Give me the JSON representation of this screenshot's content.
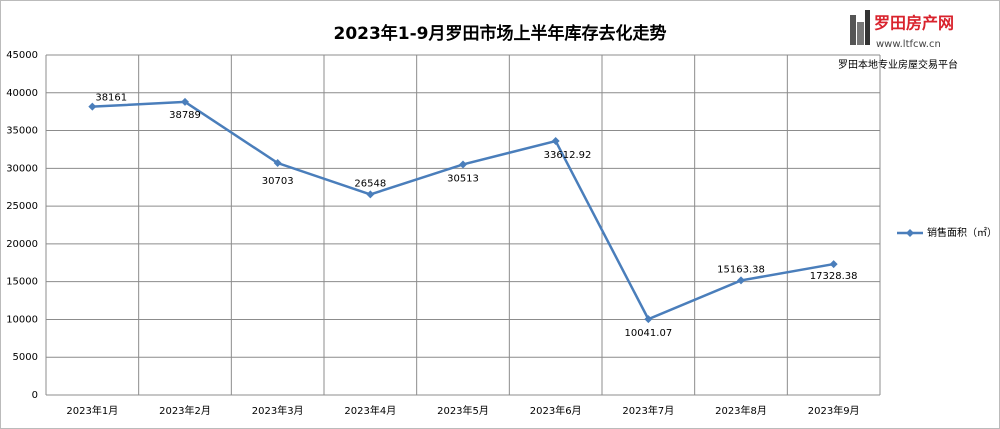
{
  "chart_data": {
    "type": "line",
    "title": "2023年1-9月罗田市场上半年库存去化走势",
    "categories": [
      "2023年1月",
      "2023年2月",
      "2023年3月",
      "2023年4月",
      "2023年5月",
      "2023年6月",
      "2023年7月",
      "2023年8月",
      "2023年9月"
    ],
    "series": [
      {
        "name": "销售面积（㎡）",
        "color": "#4a7ebb",
        "values": [
          38161,
          38789,
          30703,
          26548,
          30513,
          33612.92,
          10041.07,
          15163.38,
          17328.38
        ]
      }
    ],
    "ylim": [
      0,
      45000
    ],
    "yticks": [
      0,
      5000,
      10000,
      15000,
      20000,
      25000,
      30000,
      35000,
      40000,
      45000
    ],
    "grid": true,
    "legend": "right",
    "data_labels": true
  },
  "brand": {
    "name": "罗田房产网",
    "url": "www.ltfcw.cn",
    "slogan": "罗田本地专业房屋交易平台"
  }
}
